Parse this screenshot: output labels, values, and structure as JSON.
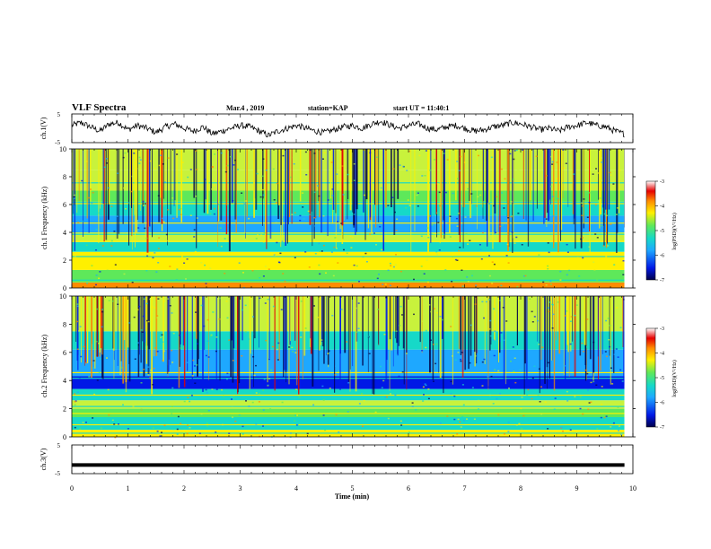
{
  "header": {
    "title": "VLF Spectra",
    "date": "Mar.4 , 2019",
    "station": "station=KAP",
    "start": "start UT =  11:40:1"
  },
  "chart_data": [
    {
      "type": "line",
      "ylabel": "ch.1(V)",
      "ylim": [
        -5,
        5
      ],
      "yticks": [
        "5",
        "-5"
      ],
      "series": [
        {
          "values": [
            1,
            2,
            0.5,
            -1,
            1.5,
            2,
            -0.5,
            1,
            0,
            -1.5,
            0.5,
            1.5,
            0,
            -1,
            0.5,
            -2,
            -1,
            0,
            1,
            0.5,
            -1,
            -2.5,
            -1,
            0,
            1,
            0,
            -1,
            -1.5,
            -0.5,
            0.5,
            1,
            0,
            1.5,
            2.5,
            1,
            0,
            1,
            1.5,
            0,
            -0.5,
            0.5,
            1,
            0,
            -1,
            -0.5,
            0.5,
            1,
            2,
            1.5,
            0.5,
            -0.5,
            0,
            -1,
            0.5,
            1,
            2,
            1,
            0.5,
            -1,
            -2
          ]
        }
      ]
    },
    {
      "type": "heatmap",
      "ylabel": "ch.1 Frequency (kHz)",
      "ylim": [
        0,
        10
      ],
      "yticks": [
        "0",
        "2",
        "4",
        "6",
        "8",
        "10"
      ],
      "colorbar": {
        "label": "log(PSD)(V²/Hz)",
        "range": [
          -7,
          -3
        ],
        "ticks": [
          "-3",
          "-4",
          "-5",
          "-6",
          "-7"
        ]
      }
    },
    {
      "type": "heatmap",
      "ylabel": "ch.2 Frequency (kHz)",
      "ylim": [
        0,
        10
      ],
      "yticks": [
        "0",
        "2",
        "4",
        "6",
        "8",
        "10"
      ],
      "colorbar": {
        "label": "log(PSD)(V²/Hz)",
        "range": [
          -7,
          -3
        ],
        "ticks": [
          "-3",
          "-4",
          "-5",
          "-6",
          "-7"
        ]
      }
    },
    {
      "type": "line",
      "ylabel": "ch.3(V)",
      "ylim": [
        -5,
        5
      ],
      "yticks": [
        "5",
        "-5"
      ],
      "series": [
        {
          "values": [
            -2,
            -2
          ]
        }
      ],
      "xlabel": "Time (min)",
      "xlim": [
        0,
        10
      ],
      "xticks": [
        "0",
        "1",
        "2",
        "3",
        "4",
        "5",
        "6",
        "7",
        "8",
        "9",
        "10"
      ]
    }
  ],
  "colors": {
    "colormap": [
      "#00004a",
      "#0018e6",
      "#1ea8ff",
      "#16d9c8",
      "#5ee85a",
      "#c8f23c",
      "#fff000",
      "#ff8c00",
      "#e60000",
      "#ffffff"
    ],
    "trace": "#000000"
  }
}
